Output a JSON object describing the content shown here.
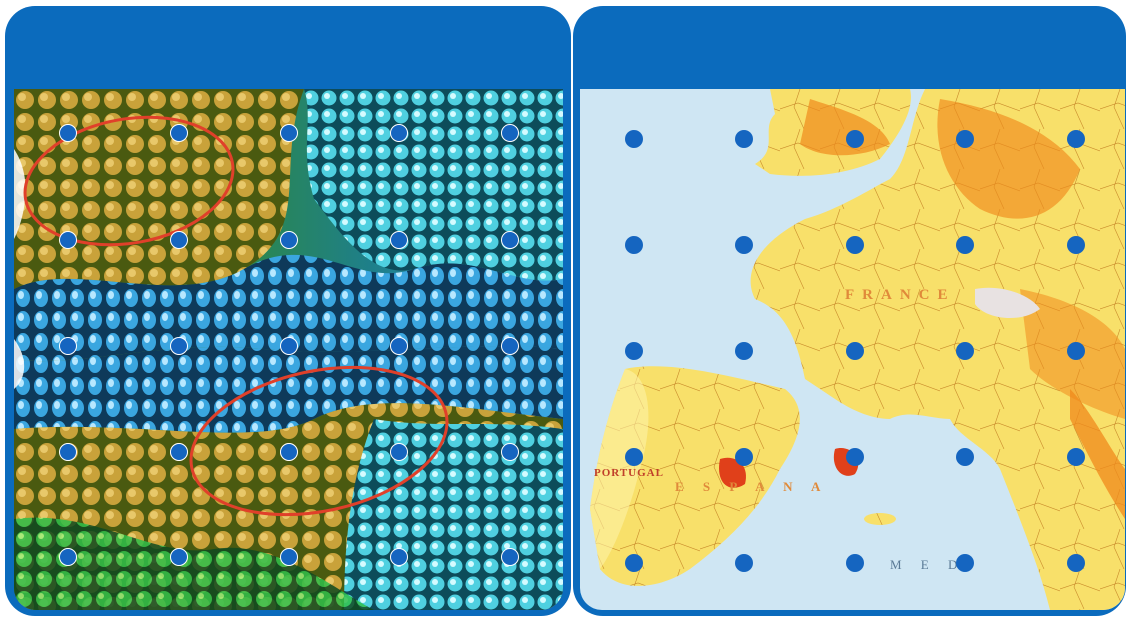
{
  "left_panel": {
    "header_title": "",
    "image_name": "molecular-surface-visualization",
    "colors": {
      "frame": "#0b6bbd",
      "highlight_ellipse": "#e0402a",
      "point": "#1565c0"
    }
  },
  "right_panel": {
    "header_title": "",
    "image_name": "western-europe-map",
    "map_labels": {
      "france": "FRANCE",
      "espana": "E S P A N A",
      "portugal": "PORTUGAL",
      "med": "M E D"
    },
    "colors": {
      "frame": "#0b6bbd",
      "sea": "#cfe6f3",
      "land_light": "#f8e58a",
      "land_dark": "#f08a1c",
      "point": "#1565c0"
    }
  },
  "grid": {
    "rows": 5,
    "cols": 5,
    "point_style_left": "outlined",
    "point_style_right": "solid"
  }
}
